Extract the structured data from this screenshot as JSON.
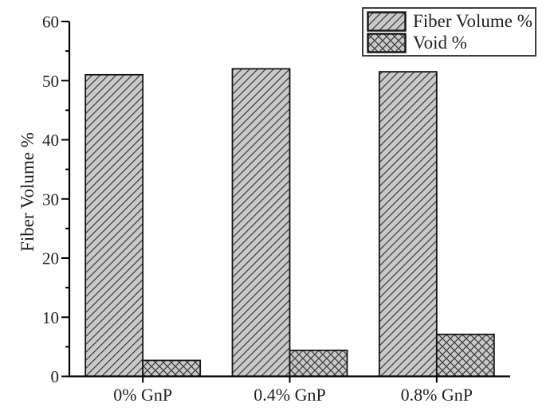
{
  "chart_data": {
    "type": "bar",
    "title": "",
    "xlabel": "",
    "ylabel": "Fiber Volume %",
    "categories": [
      "0% GnP",
      "0.4% GnP",
      "0.8% GnP"
    ],
    "series": [
      {
        "name": "Fiber Volume %",
        "pattern": "diagonal",
        "values": [
          51,
          52,
          51.5
        ]
      },
      {
        "name": "Void %",
        "pattern": "crosshatch",
        "values": [
          2.7,
          4.4,
          7.1
        ]
      }
    ],
    "ylim": [
      0,
      60
    ],
    "ytick_major_step": 10,
    "ytick_minor_step": 5,
    "ytick_labels": [
      "0",
      "10",
      "20",
      "30",
      "40",
      "50",
      "60"
    ],
    "grid": false,
    "legend": {
      "position": "top-right"
    },
    "colors": {
      "bar_fill": "#c9c9c9",
      "hatch_line": "#3a3a3a",
      "bar_border": "#141414",
      "axis_line": "#000000",
      "text": "#1f1f1f",
      "legend_border": "#3f3f3f",
      "legend_background": "#ffffff",
      "background": "#ffffff"
    }
  }
}
